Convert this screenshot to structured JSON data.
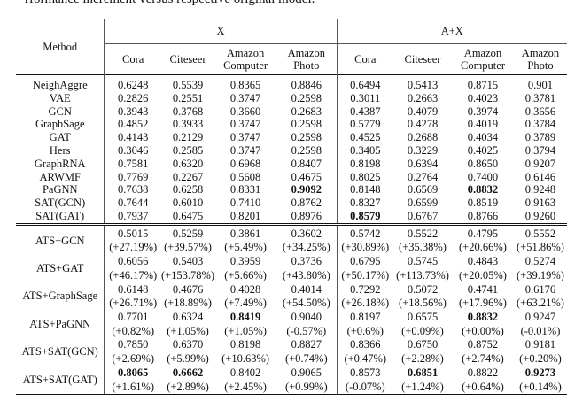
{
  "caption": "rformance increment versus respective original model.",
  "header": {
    "method": "Method",
    "groups": [
      "X",
      "A+X"
    ],
    "columns": [
      [
        "Cora"
      ],
      [
        "Citeseer"
      ],
      [
        "Amazon",
        "Computer"
      ],
      [
        "Amazon",
        "Photo"
      ],
      [
        "Cora"
      ],
      [
        "Citeseer"
      ],
      [
        "Amazon",
        "Computer"
      ],
      [
        "Amazon",
        "Photo"
      ]
    ]
  },
  "baselines": [
    {
      "method": "NeighAggre",
      "values": [
        "0.6248",
        "0.5539",
        "0.8365",
        "0.8846",
        "0.6494",
        "0.5413",
        "0.8715",
        "0.901"
      ],
      "bold": []
    },
    {
      "method": "VAE",
      "values": [
        "0.2826",
        "0.2551",
        "0.3747",
        "0.2598",
        "0.3011",
        "0.2663",
        "0.4023",
        "0.3781"
      ],
      "bold": []
    },
    {
      "method": "GCN",
      "values": [
        "0.3943",
        "0.3768",
        "0.3660",
        "0.2683",
        "0.4387",
        "0.4079",
        "0.3974",
        "0.3656"
      ],
      "bold": []
    },
    {
      "method": "GraphSage",
      "values": [
        "0.4852",
        "0.3933",
        "0.3747",
        "0.2598",
        "0.5779",
        "0.4278",
        "0.4019",
        "0.3784"
      ],
      "bold": []
    },
    {
      "method": "GAT",
      "values": [
        "0.4143",
        "0.2129",
        "0.3747",
        "0.2598",
        "0.4525",
        "0.2688",
        "0.4034",
        "0.3789"
      ],
      "bold": []
    },
    {
      "method": "Hers",
      "values": [
        "0.3046",
        "0.2585",
        "0.3747",
        "0.2598",
        "0.3405",
        "0.3229",
        "0.4025",
        "0.3794"
      ],
      "bold": []
    },
    {
      "method": "GraphRNA",
      "values": [
        "0.7581",
        "0.6320",
        "0.6968",
        "0.8407",
        "0.8198",
        "0.6394",
        "0.8650",
        "0.9207"
      ],
      "bold": []
    },
    {
      "method": "ARWMF",
      "values": [
        "0.7769",
        "0.2267",
        "0.5608",
        "0.4675",
        "0.8025",
        "0.2764",
        "0.7400",
        "0.6146"
      ],
      "bold": []
    },
    {
      "method": "PaGNN",
      "values": [
        "0.7638",
        "0.6258",
        "0.8331",
        "0.9092",
        "0.8148",
        "0.6569",
        "0.8832",
        "0.9248"
      ],
      "bold": [
        3,
        6
      ]
    },
    {
      "method": "SAT(GCN)",
      "values": [
        "0.7644",
        "0.6010",
        "0.7410",
        "0.8762",
        "0.8327",
        "0.6599",
        "0.8519",
        "0.9163"
      ],
      "bold": []
    },
    {
      "method": "SAT(GAT)",
      "values": [
        "0.7937",
        "0.6475",
        "0.8201",
        "0.8976",
        "0.8579",
        "0.6767",
        "0.8766",
        "0.9260"
      ],
      "bold": [
        4
      ]
    }
  ],
  "ats": [
    {
      "method": "ATS+GCN",
      "values": [
        "0.5015",
        "0.5259",
        "0.3861",
        "0.3602",
        "0.5742",
        "0.5522",
        "0.4795",
        "0.5552"
      ],
      "pct": [
        "(+27.19%)",
        "(+39.57%)",
        "(+5.49%)",
        "(+34.25%)",
        "(+30.89%)",
        "(+35.38%)",
        "(+20.66%)",
        "(+51.86%)"
      ],
      "bold": []
    },
    {
      "method": "ATS+GAT",
      "values": [
        "0.6056",
        "0.5403",
        "0.3959",
        "0.3736",
        "0.6795",
        "0.5745",
        "0.4843",
        "0.5274"
      ],
      "pct": [
        "(+46.17%)",
        "(+153.78%)",
        "(+5.66%)",
        "(+43.80%)",
        "(+50.17%)",
        "(+113.73%)",
        "(+20.05%)",
        "(+39.19%)"
      ],
      "bold": []
    },
    {
      "method": "ATS+GraphSage",
      "values": [
        "0.6148",
        "0.4676",
        "0.4028",
        "0.4014",
        "0.7292",
        "0.5072",
        "0.4741",
        "0.6176"
      ],
      "pct": [
        "(+26.71%)",
        "(+18.89%)",
        "(+7.49%)",
        "(+54.50%)",
        "(+26.18%)",
        "(+18.56%)",
        "(+17.96%)",
        "(+63.21%)"
      ],
      "bold": []
    },
    {
      "method": "ATS+PaGNN",
      "values": [
        "0.7701",
        "0.6324",
        "0.8419",
        "0.9040",
        "0.8197",
        "0.6575",
        "0.8832",
        "0.9247"
      ],
      "pct": [
        "(+0.82%)",
        "(+1.05%)",
        "(+1.05%)",
        "(-0.57%)",
        "(+0.6%)",
        "(+0.09%)",
        "(+0.00%)",
        "(-0.01%)"
      ],
      "bold": [
        2,
        6
      ]
    },
    {
      "method": "ATS+SAT(GCN)",
      "values": [
        "0.7850",
        "0.6370",
        "0.8198",
        "0.8827",
        "0.8366",
        "0.6750",
        "0.8752",
        "0.9181"
      ],
      "pct": [
        "(+2.69%)",
        "(+5.99%)",
        "(+10.63%)",
        "(+0.74%)",
        "(+0.47%)",
        "(+2.28%)",
        "(+2.74%)",
        "(+0.20%)"
      ],
      "bold": []
    },
    {
      "method": "ATS+SAT(GAT)",
      "values": [
        "0.8065",
        "0.6662",
        "0.8402",
        "0.9065",
        "0.8573",
        "0.6851",
        "0.8822",
        "0.9273"
      ],
      "pct": [
        "(+1.61%)",
        "(+2.89%)",
        "(+2.45%)",
        "(+0.99%)",
        "(-0.07%)",
        "(+1.24%)",
        "(+0.64%)",
        "(+0.14%)"
      ],
      "bold": [
        0,
        1,
        5,
        7
      ]
    }
  ]
}
